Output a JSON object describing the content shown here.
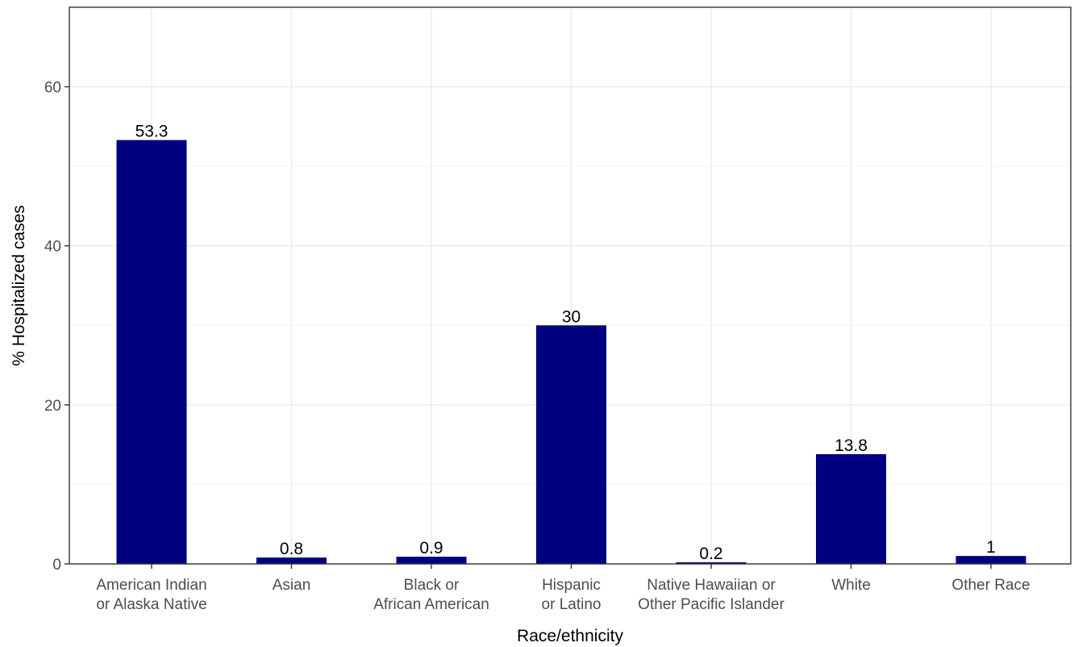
{
  "chart_data": {
    "type": "bar",
    "title": "",
    "xlabel": "Race/ethnicity",
    "ylabel": "% Hospitalized cases",
    "categories": [
      [
        "American Indian",
        "or Alaska Native"
      ],
      [
        "Asian"
      ],
      [
        "Black or",
        "African American"
      ],
      [
        "Hispanic",
        "or Latino"
      ],
      [
        "Native Hawaiian or",
        "Other Pacific Islander"
      ],
      [
        "White"
      ],
      [
        "Other Race"
      ]
    ],
    "values": [
      53.3,
      0.8,
      0.9,
      30,
      0.2,
      13.8,
      1
    ],
    "data_labels": [
      "53.3",
      "0.8",
      "0.9",
      "30",
      "0.2",
      "13.8",
      "1"
    ],
    "ylim": [
      0,
      70
    ],
    "yticks": [
      0,
      20,
      40,
      60
    ],
    "ytick_labels": [
      "0",
      "20",
      "40",
      "60"
    ],
    "grid": true,
    "bar_color": "#000080",
    "legend": "none"
  }
}
